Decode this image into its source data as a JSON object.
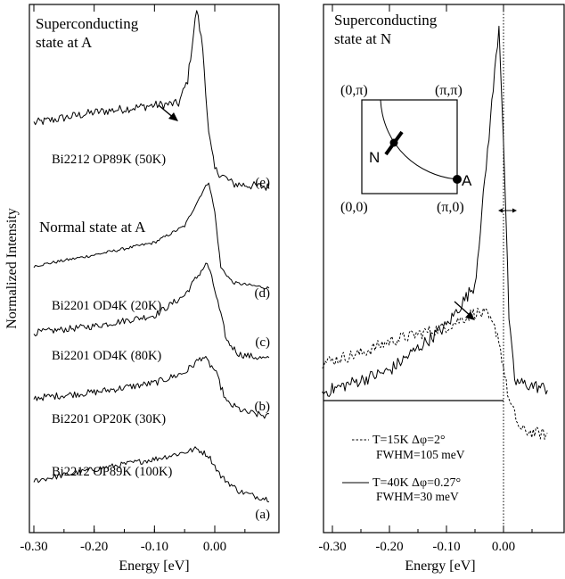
{
  "chart_data": [
    {
      "type": "line",
      "panel": "left",
      "xlabel": "Energy [eV]",
      "ylabel": "Normalized Intensity",
      "xlim": [
        -0.3,
        0.1
      ],
      "xticks": [
        -0.3,
        -0.2,
        -0.1,
        0.0
      ],
      "xtick_labels": [
        "-0.30",
        "-0.20",
        "-0.10",
        "0.00"
      ],
      "annotations": [
        "Superconducting",
        "state at A",
        "Normal state at A"
      ],
      "series": [
        {
          "letter": "(e)",
          "name": "Bi2212 OP89K (50K)",
          "peak_energy": -0.03,
          "values": [
            [
              -0.3,
              0.36
            ],
            [
              -0.2,
              0.42
            ],
            [
              -0.1,
              0.46
            ],
            [
              -0.06,
              0.47
            ],
            [
              -0.045,
              0.6
            ],
            [
              -0.03,
              1.0
            ],
            [
              -0.02,
              0.78
            ],
            [
              -0.01,
              0.3
            ],
            [
              0.0,
              0.1
            ],
            [
              0.03,
              0.02
            ],
            [
              0.09,
              0.0
            ]
          ]
        },
        {
          "letter": "(d)",
          "name": "Bi2201 OD4K (20K)",
          "peak_energy": -0.01,
          "values": [
            [
              -0.3,
              0.16
            ],
            [
              -0.2,
              0.24
            ],
            [
              -0.1,
              0.33
            ],
            [
              -0.05,
              0.45
            ],
            [
              -0.02,
              0.7
            ],
            [
              -0.01,
              0.77
            ],
            [
              0.0,
              0.55
            ],
            [
              0.01,
              0.15
            ],
            [
              0.03,
              0.04
            ],
            [
              0.09,
              0.0
            ]
          ]
        },
        {
          "letter": "(c)",
          "name": "Bi2201 OD4K (80K)",
          "peak_energy": -0.012,
          "values": [
            [
              -0.3,
              0.2
            ],
            [
              -0.2,
              0.25
            ],
            [
              -0.1,
              0.33
            ],
            [
              -0.05,
              0.48
            ],
            [
              -0.02,
              0.68
            ],
            [
              -0.012,
              0.72
            ],
            [
              0.0,
              0.52
            ],
            [
              0.02,
              0.14
            ],
            [
              0.04,
              0.04
            ],
            [
              0.09,
              0.0
            ]
          ]
        },
        {
          "letter": "(b)",
          "name": "Bi2201 OP20K (30K)",
          "peak_energy": -0.02,
          "values": [
            [
              -0.3,
              0.16
            ],
            [
              -0.2,
              0.21
            ],
            [
              -0.1,
              0.29
            ],
            [
              -0.05,
              0.38
            ],
            [
              -0.02,
              0.52
            ],
            [
              0.0,
              0.4
            ],
            [
              0.02,
              0.12
            ],
            [
              0.05,
              0.04
            ],
            [
              0.09,
              0.0
            ]
          ]
        },
        {
          "letter": "(a)",
          "name": "Bi2212 OP89K (100K)",
          "peak_energy": -0.03,
          "values": [
            [
              -0.3,
              0.18
            ],
            [
              -0.2,
              0.28
            ],
            [
              -0.1,
              0.37
            ],
            [
              -0.05,
              0.43
            ],
            [
              -0.03,
              0.46
            ],
            [
              -0.01,
              0.4
            ],
            [
              0.01,
              0.22
            ],
            [
              0.04,
              0.09
            ],
            [
              0.07,
              0.04
            ],
            [
              0.09,
              0.02
            ]
          ]
        }
      ]
    },
    {
      "type": "line",
      "panel": "right",
      "xlabel": "Energy [eV]",
      "xlim": [
        -0.32,
        0.08
      ],
      "xticks": [
        -0.3,
        -0.2,
        -0.1,
        0.0
      ],
      "xtick_labels": [
        "-0.30",
        "-0.20",
        "-0.10",
        "0.00"
      ],
      "annotations": [
        "Superconducting",
        "state at N"
      ],
      "inset": {
        "corners": [
          "(0,π)",
          "(π,π)",
          "(0,0)",
          "(π,0)"
        ],
        "points": [
          "N",
          "A"
        ]
      },
      "series": [
        {
          "name": "T=15K Δφ=2°",
          "fwhm": "FWHM=105 meV",
          "style": "dashed",
          "values": [
            [
              -0.32,
              0.36
            ],
            [
              -0.25,
              0.4
            ],
            [
              -0.2,
              0.45
            ],
            [
              -0.1,
              0.51
            ],
            [
              -0.05,
              0.57
            ],
            [
              -0.03,
              0.56
            ],
            [
              -0.01,
              0.48
            ],
            [
              0.01,
              0.2
            ],
            [
              0.03,
              0.08
            ],
            [
              0.08,
              0.06
            ]
          ]
        },
        {
          "name": "T=40K Δφ=0.27°",
          "fwhm": "FWHM=30 meV",
          "style": "solid",
          "values": [
            [
              -0.32,
              0.02
            ],
            [
              -0.2,
              0.08
            ],
            [
              -0.1,
              0.2
            ],
            [
              -0.05,
              0.31
            ],
            [
              -0.035,
              0.55
            ],
            [
              -0.02,
              0.8
            ],
            [
              -0.008,
              1.0
            ],
            [
              0.0,
              0.7
            ],
            [
              0.01,
              0.2
            ],
            [
              0.02,
              0.05
            ],
            [
              0.08,
              0.03
            ]
          ]
        }
      ]
    }
  ]
}
